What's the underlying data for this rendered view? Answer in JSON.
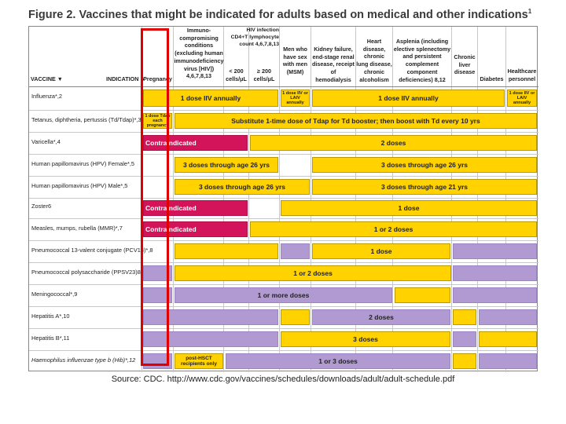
{
  "title": "Figure 2. Vaccines that might be indicated for adults based on medical and other indications",
  "title_sup": "1",
  "headers": {
    "vaccine": "VACCINE ▼",
    "indication": "INDICATION ►",
    "pregnancy": "Pregnancy",
    "immuno": "Immuno-\ncompromising\nconditions\n(excluding human\nimmunodeficiency\nvirus [HIV]) 4,6,7,8,13",
    "hiv": "HIV infection\nCD4+T lymphocyte\ncount 4,6,7,8,13",
    "hiv_lt": "< 200\ncells/μL",
    "hiv_ge": "≥ 200\ncells/μL",
    "msm": "Men who\nhave sex\nwith men\n(MSM)",
    "kidney": "Kidney failure,\nend-stage renal\ndisease, receipt of\nhemodialysis",
    "heart": "Heart disease,\nchronic\nlung disease,\nchronic\nalcoholism",
    "asplenia": "Asplenia (including\nelective splenectomy\nand persistent\ncomplement component\ndeficiencies) 8,12",
    "liver": "Chronic\nliver\ndisease",
    "diabetes": "Diabetes",
    "hcp": "Healthcare\npersonnel"
  },
  "rows": [
    {
      "label": "Influenza*,2",
      "bars": [
        "1 dose IIV annually",
        "1 dose IIV or LAIV annually",
        "1 dose IIV annually",
        "1 dose IIV or LAIV annually"
      ]
    },
    {
      "label": "Tetanus, diphtheria, pertussis (Td/Tdap)*,3",
      "bars": [
        "1 dose Tdap each pregnancy",
        "Substitute 1-time dose of Tdap for Td booster; then boost with Td every 10 yrs"
      ]
    },
    {
      "label": "Varicella*,4",
      "bars": [
        "Contraindicated",
        "2 doses"
      ]
    },
    {
      "label": "Human papillomavirus (HPV) Female*,5",
      "bars": [
        "3 doses through age 26 yrs",
        "3 doses through age 26 yrs"
      ]
    },
    {
      "label": "Human papillomavirus (HPV) Male*,5",
      "bars": [
        "3 doses through age 26 yrs",
        "3 doses through age 21 yrs"
      ]
    },
    {
      "label": "Zoster6",
      "bars": [
        "Contraindicated",
        "1 dose"
      ]
    },
    {
      "label": "Measles, mumps, rubella (MMR)*,7",
      "bars": [
        "Contraindicated",
        "1 or 2 doses"
      ]
    },
    {
      "label": "Pneumococcal 13-valent conjugate (PCV13)*,8",
      "bars": [
        "1 dose"
      ]
    },
    {
      "label": "Pneumococcal polysaccharide (PPSV23)8",
      "bars": [
        "1 or 2 doses"
      ]
    },
    {
      "label": "Meningococcal*,9",
      "bars": [
        "1 or more doses"
      ]
    },
    {
      "label": "Hepatitis A*,10",
      "bars": [
        "2 doses"
      ]
    },
    {
      "label": "Hepatitis B*,11",
      "bars": [
        "3 doses"
      ]
    },
    {
      "label": "Haemophilus influenzae type b (Hib)*,12",
      "bars": [
        "post-HSCT recipients only",
        "1 or 3 doses"
      ]
    }
  ],
  "colors": {
    "recommended": "#ffd200",
    "additional_risk": "#b09ad1",
    "contraindicated": "#d4145a",
    "highlight_box": "#e00000"
  },
  "source": "Source:  CDC.  http://www.cdc.gov/vaccines/schedules/downloads/adult/adult-schedule.pdf"
}
